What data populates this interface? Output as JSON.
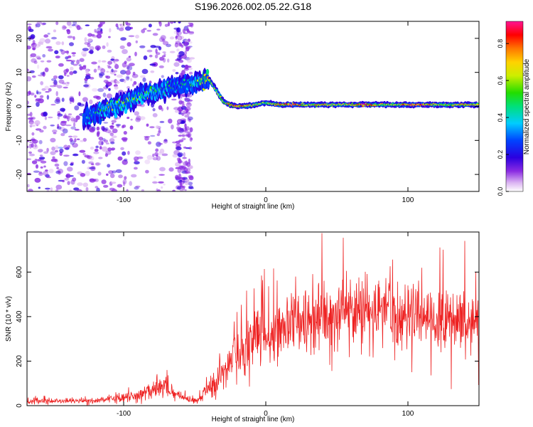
{
  "title": "S196.2026.002.05.22.G18",
  "chart_data": [
    {
      "type": "heatmap",
      "name": "spectrogram",
      "xlabel": "Height of straight line (km)",
      "ylabel": "Frequency (Hz)",
      "xlim": [
        -168,
        150
      ],
      "ylim": [
        -25,
        25
      ],
      "xticks": [
        -100,
        0,
        100
      ],
      "xtick_labels": [
        "-100",
        "0",
        "100"
      ],
      "yticks": [
        -20,
        -10,
        0,
        10,
        20
      ],
      "ytick_labels": [
        "-20",
        "-10",
        "0",
        "10",
        "20"
      ],
      "ridge": {
        "x": [
          -125,
          -112,
          -100,
          -90,
          -80,
          -70,
          -60,
          -52,
          -45,
          -40,
          -35,
          -30,
          -25,
          -20,
          -10,
          0,
          10,
          20,
          30,
          40,
          50,
          60,
          70,
          80,
          90,
          100,
          110,
          120,
          130,
          140,
          148
        ],
        "y": [
          -3,
          -1,
          1,
          3,
          4,
          5,
          6,
          6.5,
          7.5,
          8,
          5,
          1.5,
          0.5,
          0,
          0.3,
          1,
          0.5,
          0.5,
          0.5,
          0.5,
          0.5,
          0.5,
          0.5,
          0.5,
          0.5,
          0.5,
          0.5,
          0.5,
          0.5,
          0.5,
          0.5
        ],
        "amplitude": [
          0.3,
          0.45,
          0.5,
          0.45,
          0.45,
          0.4,
          0.35,
          0.4,
          0.55,
          0.6,
          0.5,
          0.55,
          0.7,
          0.8,
          0.6,
          0.5,
          0.7,
          0.8,
          0.6,
          0.7,
          0.55,
          0.65,
          0.8,
          0.6,
          0.55,
          0.75,
          0.8,
          0.6,
          0.55,
          0.7,
          0.6
        ]
      },
      "colorbar": {
        "label": "Normalized spectral amplitude",
        "range": [
          0,
          0.92
        ],
        "ticks": [
          0.0,
          0.2,
          0.4,
          0.6,
          0.8
        ],
        "tick_labels": [
          "0.0",
          "0.2",
          "0.4",
          "0.6",
          "0.8"
        ]
      }
    },
    {
      "type": "line",
      "name": "snr",
      "xlabel": "Height of straight line (km)",
      "ylabel": "SNR (10 * v/v)",
      "xlim": [
        -168,
        150
      ],
      "ylim": [
        0,
        780
      ],
      "xticks": [
        -100,
        0,
        100
      ],
      "xtick_labels": [
        "-100",
        "0",
        "100"
      ],
      "yticks": [
        0,
        200,
        400,
        600
      ],
      "ytick_labels": [
        "0",
        "200",
        "400",
        "600"
      ],
      "color": "#ee2222",
      "envelope": {
        "x": [
          -168,
          -120,
          -100,
          -90,
          -80,
          -72,
          -65,
          -55,
          -50,
          -45,
          -40,
          -30,
          -20,
          -10,
          0,
          10,
          20,
          30,
          40,
          50,
          60,
          70,
          80,
          90,
          100,
          110,
          120,
          130,
          140,
          150
        ],
        "y": [
          20,
          22,
          35,
          50,
          70,
          90,
          60,
          30,
          20,
          40,
          80,
          150,
          230,
          290,
          320,
          360,
          400,
          390,
          400,
          410,
          415,
          420,
          415,
          410,
          420,
          410,
          400,
          390,
          385,
          380
        ]
      }
    }
  ]
}
